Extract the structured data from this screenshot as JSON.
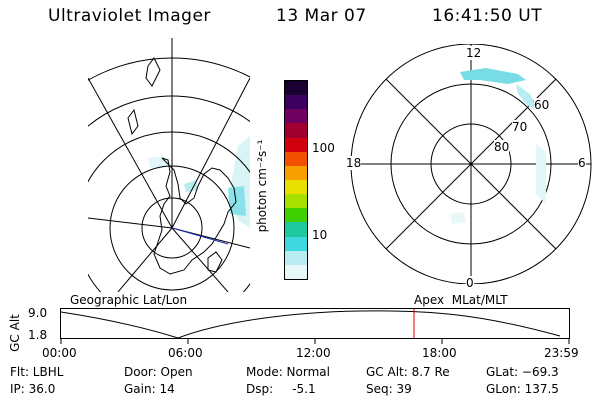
{
  "header": {
    "title": "Ultraviolet Imager",
    "date": "13 Mar 07",
    "time": "16:41:50 UT"
  },
  "colorbar": {
    "unit_label": "photon cm⁻²s⁻¹",
    "ticks": [
      "100",
      "10"
    ],
    "colors": [
      "#1a0030",
      "#3a0060",
      "#700060",
      "#a00030",
      "#d00010",
      "#f05000",
      "#f8a000",
      "#e8e000",
      "#a8e000",
      "#40d000",
      "#20c8a0",
      "#40d8e0",
      "#b8ecf0",
      "#e8f8f8"
    ]
  },
  "polar_plot": {
    "hour_labels": [
      "12",
      "18",
      "6",
      "0"
    ],
    "lat_labels": [
      "60",
      "70",
      "80"
    ]
  },
  "timeline": {
    "left_label": "Geographic Lat/Lon",
    "right_label": "Apex  MLat/MLT",
    "y_title": "GC Alt",
    "y_ticks": [
      "9.0",
      "1.8"
    ],
    "x_ticks": [
      "00:00",
      "06:00",
      "12:00",
      "18:00",
      "23:59"
    ],
    "marker_time": "16:41:50"
  },
  "info": {
    "flt": "Flt: LBHL",
    "ip": "IP: 36.0",
    "door": "Door: Open",
    "gain": "Gain: 14",
    "mode": "Mode: Normal",
    "dsp": "Dsp:     -5.1",
    "gcalt": "GC Alt: 8.7 Re",
    "seq": "Seq: 39",
    "glat": "GLat: −69.3",
    "glon": "GLon: 137.5"
  }
}
